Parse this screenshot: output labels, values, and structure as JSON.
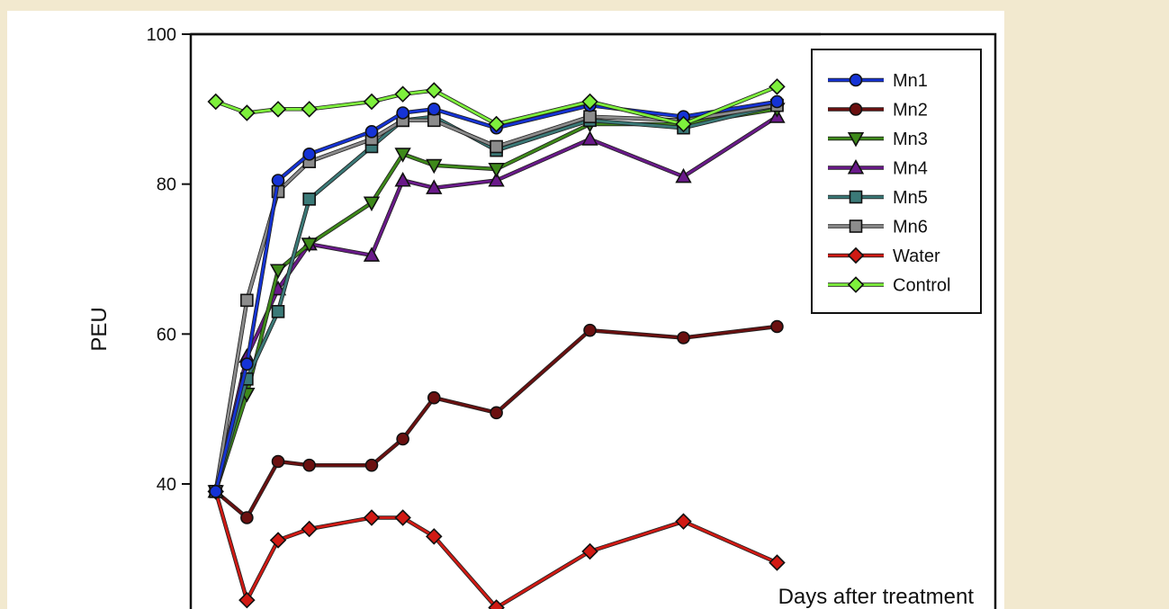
{
  "chart_data": {
    "type": "line",
    "title": "",
    "xlabel": "Days after treatment",
    "ylabel": "PEU",
    "x": [
      0,
      1,
      2,
      3,
      5,
      6,
      7,
      9,
      12,
      15,
      18
    ],
    "xlim": [
      -0.8,
      25
    ],
    "ylim": [
      22,
      100
    ],
    "y_ticks": [
      40,
      60,
      80,
      100
    ],
    "grid": false,
    "legend_position": "top-right",
    "series": [
      {
        "name": "Mn1",
        "marker": "circle",
        "color": "#1533d6",
        "values": [
          39,
          56,
          80.5,
          84,
          87,
          89.5,
          90,
          87.5,
          90.5,
          89,
          91
        ]
      },
      {
        "name": "Mn2",
        "marker": "circle",
        "color": "#6b1010",
        "values": [
          39,
          35.5,
          43,
          42.5,
          42.5,
          46,
          51.5,
          49.5,
          60.5,
          59.5,
          61
        ]
      },
      {
        "name": "Mn3",
        "marker": "triangle-down",
        "color": "#3e8a1a",
        "values": [
          39,
          52,
          68.5,
          72,
          77.5,
          84,
          82.5,
          82,
          88,
          88,
          90
        ]
      },
      {
        "name": "Mn4",
        "marker": "triangle-up",
        "color": "#6a1a8a",
        "values": [
          39,
          57,
          66,
          72,
          70.5,
          80.5,
          79.5,
          80.5,
          86,
          81,
          89
        ]
      },
      {
        "name": "Mn5",
        "marker": "square",
        "color": "#3b7a78",
        "values": [
          39,
          54,
          63,
          78,
          85,
          88.5,
          89,
          84.5,
          88.5,
          87.5,
          90.5
        ]
      },
      {
        "name": "Mn6",
        "marker": "square",
        "color": "#8c8c8c",
        "values": [
          39,
          64.5,
          79,
          83,
          86,
          88.5,
          88.5,
          85,
          89,
          88.5,
          90.5
        ]
      },
      {
        "name": "Water",
        "marker": "diamond",
        "color": "#d11a14",
        "values": [
          39,
          24.5,
          32.5,
          34,
          35.5,
          35.5,
          33,
          23.5,
          31,
          35,
          29.5
        ]
      },
      {
        "name": "Control",
        "marker": "diamond",
        "color": "#7ef03c",
        "values": [
          91,
          89.5,
          90,
          90,
          91,
          92,
          92.5,
          88,
          91,
          88,
          93
        ]
      }
    ]
  }
}
